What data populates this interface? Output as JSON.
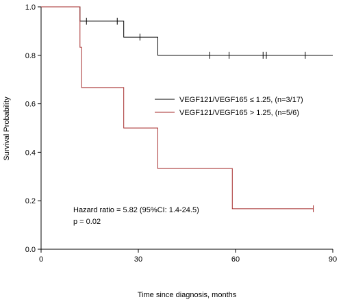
{
  "chart_data": {
    "type": "line",
    "subtype": "kaplan-meier",
    "title": "",
    "xlabel": "Time since diagnosis, months",
    "ylabel": "Survival Probability",
    "xlim": [
      0,
      90
    ],
    "ylim": [
      0,
      1.0
    ],
    "xticks": [
      0,
      30,
      60,
      90
    ],
    "yticks": [
      0.0,
      0.2,
      0.4,
      0.6,
      0.8,
      1.0
    ],
    "xtick_labels": [
      "0",
      "30",
      "60",
      "90"
    ],
    "ytick_labels": [
      "0.0",
      "0.2",
      "0.4",
      "0.6",
      "0.8",
      "1.0"
    ],
    "grid": false,
    "legend_position": "center-right",
    "series": [
      {
        "name": "VEGF121/VEGF165 ≤ 1.25, (n=3/17)",
        "color": "#000000",
        "x": [
          0,
          12,
          25.5,
          36,
          90
        ],
        "y": [
          1.0,
          0.941,
          0.875,
          0.8,
          0.8
        ],
        "censor_x": [
          14,
          23.5,
          30.5,
          52,
          58,
          68.5,
          69.5,
          81.5
        ],
        "censor_y": [
          0.941,
          0.941,
          0.875,
          0.8,
          0.8,
          0.8,
          0.8,
          0.8
        ]
      },
      {
        "name": "VEGF121/VEGF165 > 1.25, (n=5/6)",
        "color": "#a52a2a",
        "x": [
          0,
          12,
          12.5,
          25.5,
          36,
          59,
          84
        ],
        "y": [
          1.0,
          0.833,
          0.667,
          0.5,
          0.333,
          0.167,
          0.167
        ],
        "censor_x": [
          84
        ],
        "censor_y": [
          0.167
        ]
      }
    ],
    "annotations": [
      "Hazard ratio = 5.82 (95%CI: 1.4-24.5)",
      "p =  0.02"
    ]
  }
}
